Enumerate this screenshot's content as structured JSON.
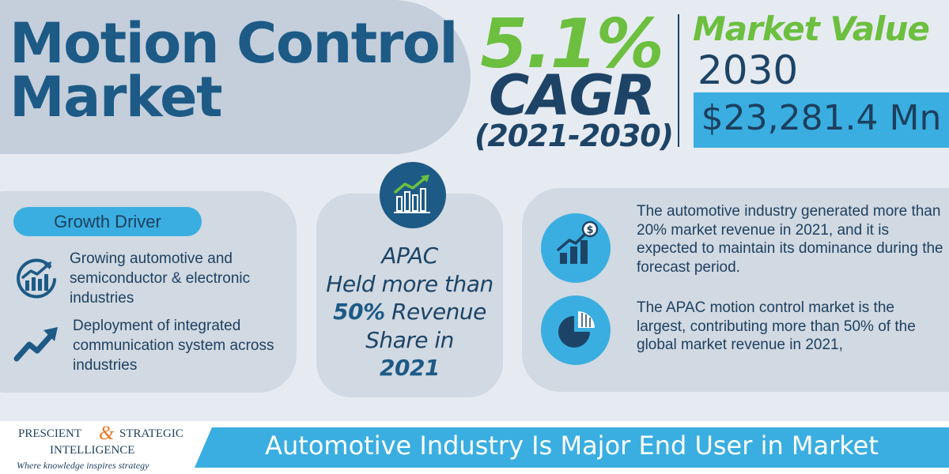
{
  "title": {
    "line1": "Motion Control",
    "line2": "Market"
  },
  "cagr": {
    "value": "5.1%",
    "label": "CAGR",
    "period": "(2021-2030)"
  },
  "market_value": {
    "label": "Market Value",
    "year": "2030",
    "amount": "$23,281.4 Mn"
  },
  "growth_driver": {
    "heading": "Growth Driver",
    "items": [
      {
        "icon": "growth-chart-icon",
        "text": "Growing automotive and semiconductor & electronic industries"
      },
      {
        "icon": "trend-arrow-icon",
        "text": "Deployment of integrated communication system across industries"
      }
    ]
  },
  "apac": {
    "icon": "bar-chart-growth-icon",
    "line1": "APAC",
    "line2": "Held more than",
    "line3_bold": "50%",
    "line3_rest": " Revenue",
    "line4": "Share in",
    "line5": "2021"
  },
  "facts": [
    {
      "icon": "revenue-growth-icon",
      "text": "The automotive industry generated more than 20% market revenue in 2021, and it is expected to maintain its dominance during the forecast period."
    },
    {
      "icon": "pie-chart-icon",
      "text": "The APAC motion control market is the largest, contributing more than 50% of the global market revenue in 2021,"
    }
  ],
  "footer": {
    "brand_prescient": "PRESCIENT",
    "brand_amp": "&",
    "brand_strategic": "STRATEGIC",
    "brand_intelligence": "INTELLIGENCE",
    "tagline": "Where knowledge inspires strategy",
    "banner": "Automotive Industry Is Major End User in Market"
  },
  "colors": {
    "navy": "#1d4466",
    "dark_blue": "#1d5a86",
    "green": "#6cbf3f",
    "accent_blue": "#3aaee0",
    "orange": "#e87722"
  }
}
